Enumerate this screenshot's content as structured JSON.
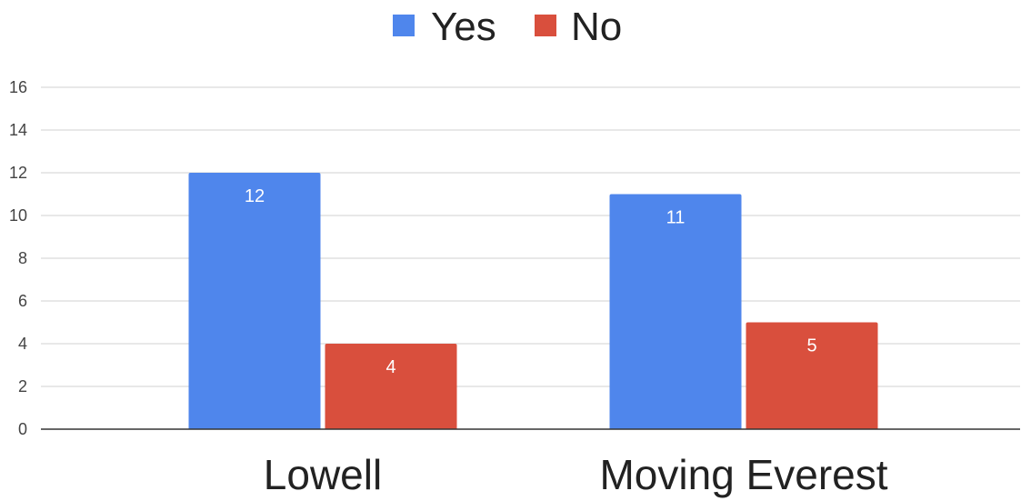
{
  "chart_data": {
    "type": "bar",
    "categories": [
      "Lowell",
      "Moving Everest"
    ],
    "series": [
      {
        "name": "Yes",
        "values": [
          12,
          11
        ],
        "color": "#4F86EC"
      },
      {
        "name": "No",
        "values": [
          4,
          5
        ],
        "color": "#D94F3D"
      }
    ],
    "yticks": [
      "0",
      "2",
      "4",
      "6",
      "8",
      "10",
      "12",
      "14",
      "16"
    ],
    "ylim": [
      0,
      16
    ],
    "grid": true,
    "legend_position": "top-center",
    "data_labels": true
  }
}
